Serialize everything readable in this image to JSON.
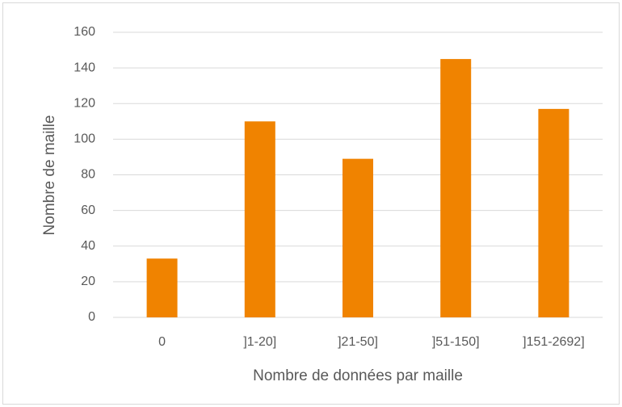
{
  "chart_data": {
    "type": "bar",
    "categories": [
      "0",
      "]1-20]",
      "]21-50]",
      "]51-150]",
      "]151-2692]"
    ],
    "values": [
      33,
      110,
      89,
      145,
      117
    ],
    "color": "#f08300",
    "xlabel": "Nombre de données par maille",
    "ylabel": "Nombre de maille",
    "ylim": [
      0,
      160
    ],
    "yticks": [
      0,
      20,
      40,
      60,
      80,
      100,
      120,
      140,
      160
    ],
    "grid": true
  }
}
